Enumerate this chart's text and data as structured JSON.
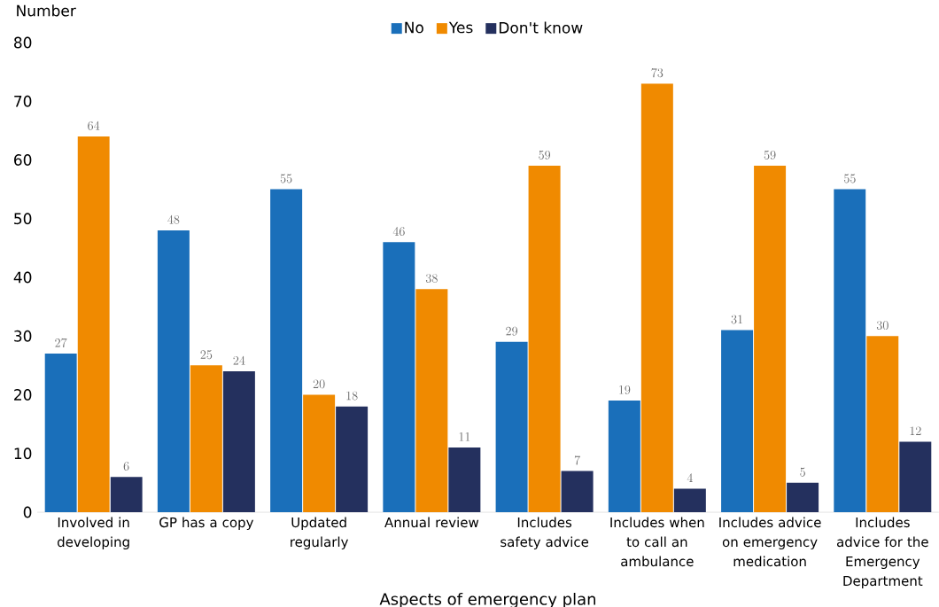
{
  "chart_data": {
    "type": "bar",
    "xlabel": "Aspects of emergency plan",
    "ylabel": "Number",
    "categories": [
      "Involved in developing",
      "GP has a copy",
      "Updated regularly",
      "Annual review",
      "Includes safety advice",
      "Includes when to call an ambulance",
      "Includes advice on emergency medication",
      "Includes advice for the Emergency Department"
    ],
    "series": [
      {
        "name": "No",
        "color": "#1a6fba",
        "values": [
          27,
          48,
          55,
          46,
          29,
          19,
          31,
          55
        ]
      },
      {
        "name": "Yes",
        "color": "#f08a00",
        "values": [
          64,
          25,
          20,
          38,
          59,
          73,
          59,
          30
        ]
      },
      {
        "name": "Don't know",
        "color": "#24305e",
        "values": [
          6,
          24,
          18,
          11,
          7,
          4,
          5,
          12
        ]
      }
    ],
    "ylim": [
      0,
      80
    ],
    "yticks": [
      0,
      10,
      20,
      30,
      40,
      50,
      60,
      70,
      80
    ],
    "data_labels": true,
    "legend": "top",
    "grid": false
  }
}
